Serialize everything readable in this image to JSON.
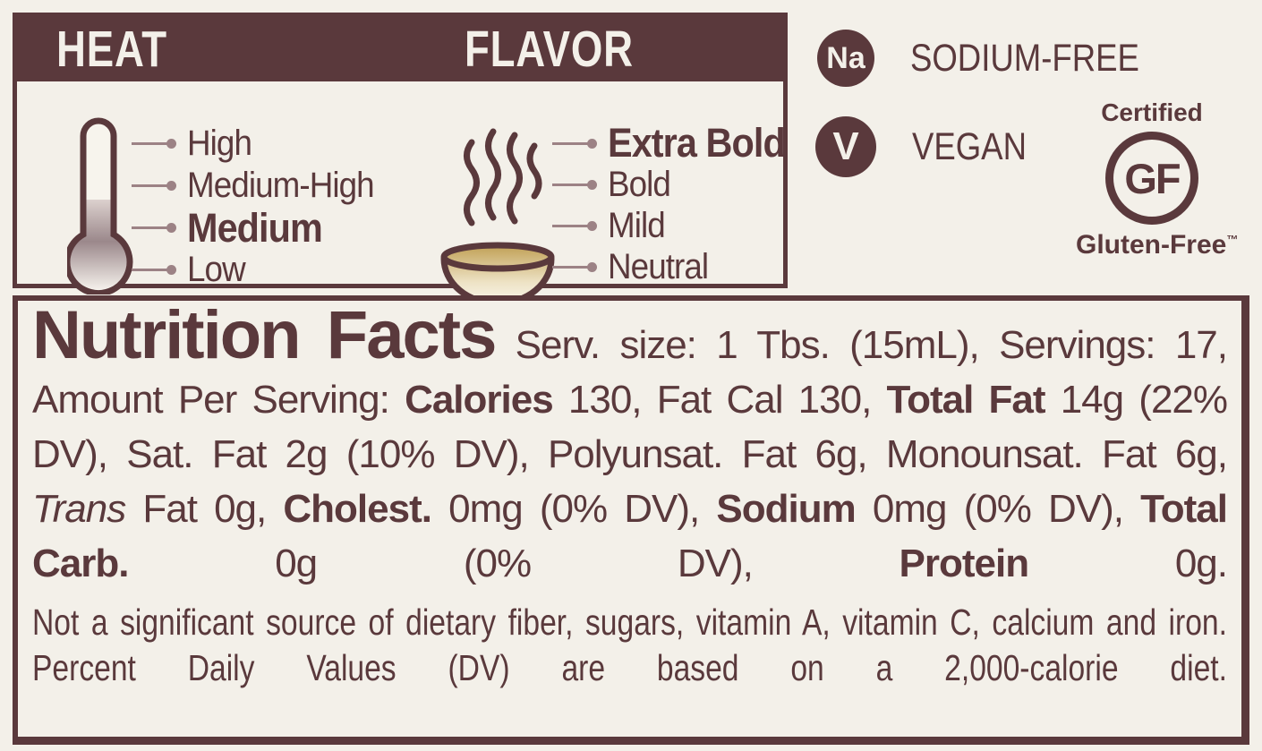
{
  "colors": {
    "maroon": "#5a393c",
    "cream": "#f3f0e9",
    "arrow_mauve": "#9c8285",
    "broth_gold": "#bf9e52"
  },
  "heat_panel": {
    "heat_header": "HEAT",
    "flavor_header": "FLAVOR",
    "heat_levels": [
      {
        "label": "High",
        "selected": false
      },
      {
        "label": "Medium-High",
        "selected": false
      },
      {
        "label": "Medium",
        "selected": true
      },
      {
        "label": "Low",
        "selected": false
      }
    ],
    "flavor_levels": [
      {
        "label": "Extra Bold",
        "selected": true
      },
      {
        "label": "Bold",
        "selected": false
      },
      {
        "label": "Mild",
        "selected": false
      },
      {
        "label": "Neutral",
        "selected": false
      }
    ]
  },
  "badges": {
    "sodium": {
      "icon_text": "Na",
      "label": "SODIUM-FREE"
    },
    "vegan": {
      "icon_text": "V",
      "label": "VEGAN"
    },
    "gluten_free": {
      "top": "Certified",
      "mark": "GF",
      "bottom": "Gluten-Free",
      "tm": "™"
    }
  },
  "nutrition": {
    "title": "Nutrition Facts",
    "segments": [
      {
        "text": " Serv. size: 1 Tbs. (15mL), Servings: 17, Amount Per Serving: ",
        "style": ""
      },
      {
        "text": "Calories",
        "style": "b"
      },
      {
        "text": " 130, Fat Cal 130, ",
        "style": ""
      },
      {
        "text": "Total Fat",
        "style": "b"
      },
      {
        "text": " 14g (22% DV), Sat. Fat 2g (10% DV), Polyunsat. Fat 6g, Monounsat. Fat 6g, ",
        "style": ""
      },
      {
        "text": "Trans",
        "style": "i"
      },
      {
        "text": " Fat 0g, ",
        "style": ""
      },
      {
        "text": "Cholest.",
        "style": "b"
      },
      {
        "text": " 0mg (0% DV), ",
        "style": ""
      },
      {
        "text": "Sodium",
        "style": "b"
      },
      {
        "text": " 0mg (0% DV), ",
        "style": ""
      },
      {
        "text": "Total Carb.",
        "style": "b"
      },
      {
        "text": " 0g (0% DV), ",
        "style": ""
      },
      {
        "text": "Protein",
        "style": "b"
      },
      {
        "text": " 0g.",
        "style": ""
      }
    ],
    "footnote": "Not a significant source of dietary fiber, sugars, vitamin A, vitamin C, calcium and iron. Percent Daily Values (DV) are based on a 2,000-calorie diet."
  }
}
